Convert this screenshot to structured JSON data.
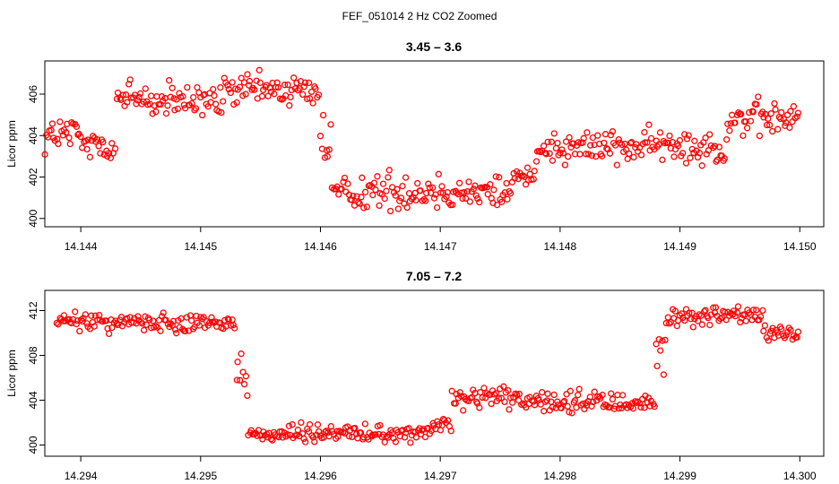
{
  "figure": {
    "suptitle": "FEF_051014  2 Hz CO2 Zoomed"
  },
  "chart_data": [
    {
      "type": "scatter",
      "title": "3.45 – 3.6",
      "xlabel": "",
      "ylabel": "Licor ppm",
      "xlim": [
        14.1437,
        14.1502
      ],
      "ylim": [
        399.6,
        407.6
      ],
      "x_ticks": [
        14.144,
        14.145,
        14.146,
        14.147,
        14.148,
        14.149,
        14.15
      ],
      "x_tick_labels": [
        "14.144",
        "14.145",
        "14.146",
        "14.147",
        "14.148",
        "14.149",
        "14.150"
      ],
      "y_ticks": [
        400,
        402,
        404,
        406
      ],
      "y_tick_labels": [
        "400",
        "402",
        "404",
        "406"
      ],
      "marker_color": "#ff0000",
      "grid": false,
      "segments": [
        {
          "x_start": 14.1437,
          "x_end": 14.144,
          "level": 404.0,
          "spread": 0.9
        },
        {
          "x_start": 14.144,
          "x_end": 14.1443,
          "level": 403.6,
          "spread": 1.1
        },
        {
          "x_start": 14.1443,
          "x_end": 14.1446,
          "level": 405.8,
          "spread": 0.9
        },
        {
          "x_start": 14.1446,
          "x_end": 14.1452,
          "level": 405.6,
          "spread": 0.8
        },
        {
          "x_start": 14.1452,
          "x_end": 14.146,
          "level": 406.2,
          "spread": 0.7
        },
        {
          "x_start": 14.146,
          "x_end": 14.1461,
          "level": 403.5,
          "spread": 1.5
        },
        {
          "x_start": 14.1461,
          "x_end": 14.1476,
          "level": 401.3,
          "spread": 0.8
        },
        {
          "x_start": 14.1476,
          "x_end": 14.1478,
          "level": 402.0,
          "spread": 0.6
        },
        {
          "x_start": 14.1478,
          "x_end": 14.149,
          "level": 403.5,
          "spread": 0.7
        },
        {
          "x_start": 14.149,
          "x_end": 14.1494,
          "level": 403.5,
          "spread": 0.8
        },
        {
          "x_start": 14.1494,
          "x_end": 14.15,
          "level": 404.8,
          "spread": 0.8
        }
      ]
    },
    {
      "type": "scatter",
      "title": "7.05 – 7.2",
      "xlabel": "",
      "ylabel": "Licor ppm",
      "xlim": [
        14.2937,
        14.3002
      ],
      "ylim": [
        399.0,
        413.8
      ],
      "x_ticks": [
        14.294,
        14.295,
        14.296,
        14.297,
        14.298,
        14.299,
        14.3
      ],
      "x_tick_labels": [
        "14.294",
        "14.295",
        "14.296",
        "14.297",
        "14.298",
        "14.299",
        "14.300"
      ],
      "y_ticks": [
        400,
        404,
        408,
        412
      ],
      "y_tick_labels": [
        "400",
        "404",
        "408",
        "412"
      ],
      "marker_color": "#ff0000",
      "grid": false,
      "segments": [
        {
          "x_start": 14.2938,
          "x_end": 14.2953,
          "level": 411.0,
          "spread": 0.8
        },
        {
          "x_start": 14.2953,
          "x_end": 14.2954,
          "level": 406.0,
          "spread": 3.0
        },
        {
          "x_start": 14.2954,
          "x_end": 14.2969,
          "level": 401.0,
          "spread": 0.7
        },
        {
          "x_start": 14.2969,
          "x_end": 14.2971,
          "level": 401.6,
          "spread": 0.8
        },
        {
          "x_start": 14.2971,
          "x_end": 14.2977,
          "level": 404.2,
          "spread": 0.8
        },
        {
          "x_start": 14.2977,
          "x_end": 14.2988,
          "level": 403.8,
          "spread": 0.8
        },
        {
          "x_start": 14.2988,
          "x_end": 14.2989,
          "level": 408.0,
          "spread": 3.0
        },
        {
          "x_start": 14.2989,
          "x_end": 14.2997,
          "level": 411.5,
          "spread": 0.8
        },
        {
          "x_start": 14.2997,
          "x_end": 14.3,
          "level": 409.9,
          "spread": 0.6
        }
      ]
    }
  ]
}
